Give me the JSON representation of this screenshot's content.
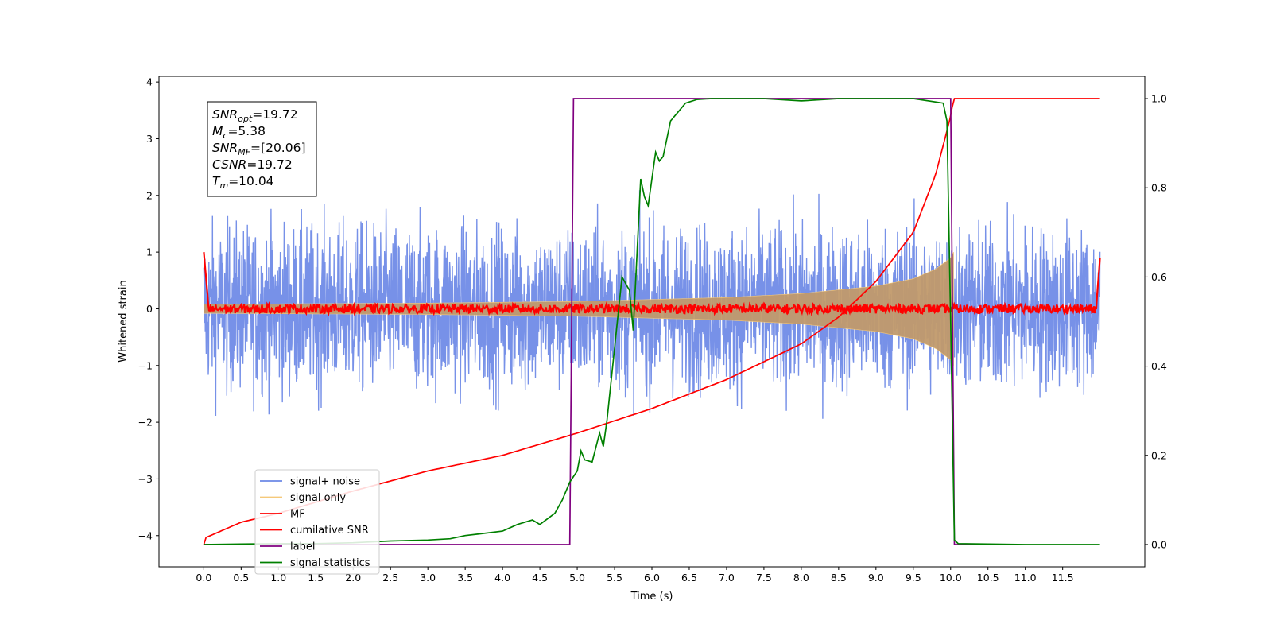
{
  "chart_data": {
    "type": "line",
    "title": "",
    "xlabel": "Time (s)",
    "ylabel": "Whitened strain",
    "xlim": [
      -0.6,
      12.6
    ],
    "ylim": [
      -4.55,
      4.1
    ],
    "ylim_right": [
      -0.05,
      1.05
    ],
    "x_ticks": [
      "0.0",
      "0.5",
      "1.0",
      "1.5",
      "2.0",
      "2.5",
      "3.0",
      "3.5",
      "4.0",
      "4.5",
      "5.0",
      "5.5",
      "6.0",
      "6.5",
      "7.0",
      "7.5",
      "8.0",
      "8.5",
      "9.0",
      "9.5",
      "10.0",
      "10.5",
      "11.0",
      "11.5"
    ],
    "y_ticks": [
      "4",
      "3",
      "2",
      "1",
      "0",
      "−1",
      "−2",
      "−3",
      "−4"
    ],
    "y_ticks_right": [
      "1.0",
      "0.8",
      "0.6",
      "0.4",
      "0.2",
      "0.0"
    ],
    "grid": false,
    "legend_position": "lower-left",
    "annotation": [
      {
        "name": "SNR",
        "sub": "opt",
        "value": "=19.72"
      },
      {
        "name": "M",
        "sub": "c",
        "value": "=5.38"
      },
      {
        "name": "SNR",
        "sub": "MF",
        "value": "=[20.06]"
      },
      {
        "name": "CSNR",
        "sub": "",
        "value": "=19.72"
      },
      {
        "name": "T",
        "sub": "m",
        "value": "=10.04"
      }
    ],
    "series": [
      {
        "name": "signal+ noise",
        "color": "#6b88e6",
        "axis": "left",
        "description": "noise fluctuation approx ±1 to ±3 over 0–12 s"
      },
      {
        "name": "signal only",
        "color": "#f5c97a",
        "axis": "left",
        "envelope": {
          "x": [
            0.0,
            3.0,
            5.0,
            7.0,
            8.0,
            9.0,
            9.5,
            9.8,
            10.0,
            10.04
          ],
          "y": [
            0.08,
            0.1,
            0.13,
            0.2,
            0.27,
            0.4,
            0.53,
            0.7,
            0.9,
            1.0
          ]
        }
      },
      {
        "name": "MF",
        "color": "#ff0000",
        "axis": "left",
        "description": "near 0 with small fluctuations, spikes near 1 at both ends"
      },
      {
        "name": "cumilative SNR",
        "color": "#ff0000",
        "axis": "right",
        "x": [
          0.0,
          0.02,
          0.5,
          1.0,
          2.0,
          3.0,
          4.0,
          5.0,
          6.0,
          7.0,
          8.0,
          8.5,
          9.0,
          9.5,
          9.8,
          10.0,
          10.04,
          12.0
        ],
        "y": [
          0.0,
          0.015,
          0.05,
          0.07,
          0.12,
          0.165,
          0.2,
          0.25,
          0.305,
          0.37,
          0.45,
          0.51,
          0.59,
          0.7,
          0.83,
          0.96,
          1.0,
          1.0
        ]
      },
      {
        "name": "label",
        "color": "#800080",
        "axis": "right",
        "x": [
          0.0,
          4.9,
          4.95,
          10.0,
          10.05,
          10.5
        ],
        "y": [
          0.0,
          0.0,
          1.0,
          1.0,
          0.0,
          0.0
        ]
      },
      {
        "name": "signal statistics",
        "color": "#008000",
        "axis": "right",
        "x": [
          0.0,
          0.5,
          1.0,
          1.5,
          2.0,
          2.5,
          3.0,
          3.3,
          3.5,
          3.7,
          4.0,
          4.2,
          4.4,
          4.5,
          4.7,
          4.8,
          4.9,
          5.0,
          5.05,
          5.1,
          5.2,
          5.3,
          5.35,
          5.4,
          5.5,
          5.6,
          5.7,
          5.75,
          5.85,
          5.9,
          5.95,
          6.05,
          6.1,
          6.15,
          6.25,
          6.35,
          6.45,
          6.6,
          6.8,
          7.0,
          7.5,
          8.0,
          8.5,
          9.0,
          9.5,
          9.9,
          9.95,
          10.0,
          10.05,
          10.1,
          11.0,
          12.0
        ],
        "y": [
          0.0,
          0.001,
          0.002,
          0.002,
          0.004,
          0.008,
          0.01,
          0.013,
          0.02,
          0.024,
          0.03,
          0.045,
          0.055,
          0.045,
          0.07,
          0.1,
          0.14,
          0.165,
          0.21,
          0.19,
          0.185,
          0.25,
          0.22,
          0.28,
          0.44,
          0.6,
          0.57,
          0.48,
          0.82,
          0.78,
          0.76,
          0.88,
          0.86,
          0.87,
          0.95,
          0.97,
          0.99,
          0.998,
          1.0,
          1.0,
          1.0,
          0.995,
          1.0,
          1.0,
          1.0,
          0.99,
          0.95,
          0.5,
          0.01,
          0.002,
          0.0,
          0.0
        ]
      }
    ]
  }
}
